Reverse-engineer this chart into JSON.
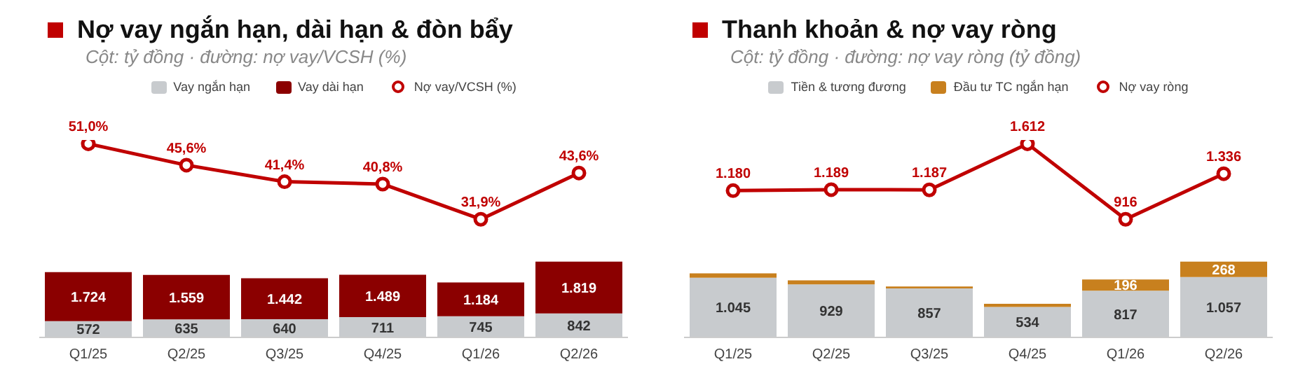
{
  "chart_data": [
    {
      "type": "bar",
      "categories": [
        "Q1/25",
        "Q2/25",
        "Q3/25",
        "Q4/25",
        "Q1/26",
        "Q2/26"
      ],
      "stacked": true,
      "legend": "top",
      "grid": false,
      "tick_labels": "x",
      "series": [
        {
          "name": "Vay ngắn hạn",
          "color": "#c8cbce",
          "values": [
            572,
            635,
            640,
            711,
            745,
            842
          ],
          "value_labels": [
            "572",
            "635",
            "640",
            "711",
            "745",
            "842"
          ]
        },
        {
          "name": "Vay dài hạn",
          "color": "#8b0000",
          "values": [
            1724,
            1559,
            1442,
            1489,
            1184,
            1819
          ],
          "value_labels": [
            "1.724",
            "1.559",
            "1.442",
            "1.489",
            "1.184",
            "1.819"
          ]
        }
      ]
    },
    {
      "type": "line",
      "title": "Nợ vay ngắn hạn, dài hạn & đòn bẩy",
      "subtitle": "Cột: tỷ đồng · đường: nợ vay/VCSH (%)",
      "categories": [
        null,
        null,
        null,
        null,
        null,
        null
      ],
      "tick_labels": false,
      "marker": "circle",
      "line_style": "solid",
      "series": [
        {
          "name": "Nợ vay/VCSH (%)",
          "color": "#c00000",
          "values": [
            51.0,
            45.6,
            41.4,
            40.8,
            31.9,
            43.6
          ],
          "value_labels": [
            "51,0%",
            "45,6%",
            "41,4%",
            "40,8%",
            "31,9%",
            "43,6%"
          ]
        }
      ]
    },
    {
      "type": "bar",
      "categories": [
        "Q1/25",
        "Q2/25",
        "Q3/25",
        "Q4/25",
        "Q1/26",
        "Q2/26"
      ],
      "stacked": true,
      "legend": "top",
      "grid": false,
      "tick_labels": "x",
      "series": [
        {
          "name": "Tiền & tương đương",
          "color": "#c8cbce",
          "values": [
            1045,
            929,
            857,
            534,
            817,
            1057
          ],
          "value_labels": [
            "1.045",
            "929",
            "857",
            "534",
            "817",
            "1.057"
          ]
        },
        {
          "name": "Đầu tư TC ngắn hạn",
          "color": "#c8801e",
          "values": [
            75,
            70,
            35,
            55,
            196,
            268
          ],
          "value_labels": [
            null,
            null,
            null,
            null,
            "196",
            "268"
          ]
        }
      ]
    },
    {
      "type": "line",
      "title": "Thanh khoản & nợ vay ròng",
      "subtitle": "Cột: tỷ đồng · đường: nợ vay ròng (tỷ đồng)",
      "categories": [
        null,
        null,
        null,
        null,
        null,
        null
      ],
      "tick_labels": false,
      "marker": "circle",
      "line_style": "solid",
      "series": [
        {
          "name": "Nợ vay ròng",
          "color": "#c00000",
          "values": [
            1180,
            1189,
            1187,
            1612,
            916,
            1336
          ],
          "value_labels": [
            "1.180",
            "1.189",
            "1.187",
            "1.612",
            "916",
            "1.336"
          ]
        }
      ]
    }
  ]
}
